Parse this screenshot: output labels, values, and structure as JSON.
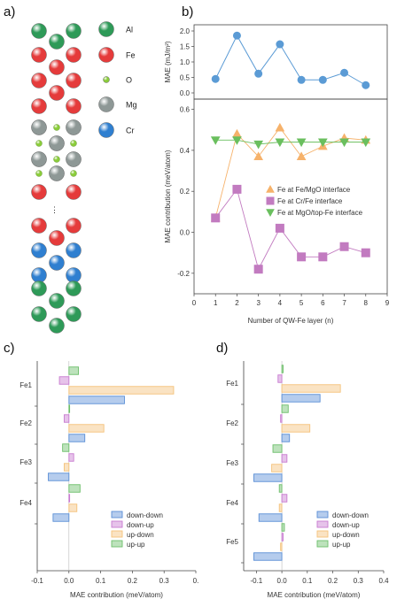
{
  "panels": {
    "a": "a)",
    "b": "b)",
    "c": "c)",
    "d": "d)"
  },
  "structure_a": {
    "legend": [
      {
        "label": "Al",
        "color": "#2e9a58"
      },
      {
        "label": "Fe",
        "color": "#e53b3b"
      },
      {
        "label": "O",
        "color": "#8acc3a"
      },
      {
        "label": "Mg",
        "color": "#8e9896"
      },
      {
        "label": "Cr",
        "color": "#2f7fd0"
      }
    ],
    "ellipsis": "⋮"
  },
  "chart_data": [
    {
      "id": "b_top",
      "type": "scatter",
      "ylabel": "MAE (mJ/m²)",
      "x": [
        1,
        2,
        3,
        4,
        5,
        6,
        7,
        8
      ],
      "y": [
        0.45,
        1.85,
        0.62,
        1.57,
        0.42,
        0.42,
        0.65,
        0.25
      ],
      "xlim": [
        0,
        9
      ],
      "ylim": [
        -0.2,
        2.2
      ],
      "yticks": [
        "0.0",
        "0.5",
        "1.0",
        "1.5",
        "2.0"
      ],
      "color": "#5b9bd5"
    },
    {
      "id": "b_bottom",
      "type": "scatter",
      "xlabel": "Number of QW-Fe layer (n)",
      "ylabel": "MAE contribution (meV/atom)",
      "xlim": [
        0,
        9
      ],
      "ylim": [
        -0.3,
        0.65
      ],
      "xticks": [
        "0",
        "1",
        "2",
        "3",
        "4",
        "5",
        "6",
        "7",
        "8",
        "9"
      ],
      "yticks": [
        "-0.2",
        "0.0",
        "0.2",
        "0.4",
        "0.6"
      ],
      "legend_position": "center-right",
      "series": [
        {
          "name": "Fe at Fe/MgO interface",
          "marker": "triangle-up",
          "color": "#f6b26b",
          "x": [
            1,
            2,
            3,
            4,
            5,
            6,
            7,
            8
          ],
          "y": [
            0.07,
            0.48,
            0.37,
            0.51,
            0.37,
            0.42,
            0.46,
            0.45
          ]
        },
        {
          "name": "Fe at Cr/Fe interface",
          "marker": "square",
          "color": "#c27bc0",
          "x": [
            1,
            2,
            3,
            4,
            5,
            6,
            7,
            8
          ],
          "y": [
            0.07,
            0.21,
            -0.18,
            0.02,
            -0.12,
            -0.12,
            -0.07,
            -0.1
          ]
        },
        {
          "name": "Fe at MgO/top-Fe interface",
          "marker": "triangle-down",
          "color": "#6abf5e",
          "x": [
            1,
            2,
            3,
            4,
            5,
            6,
            7,
            8
          ],
          "y": [
            0.45,
            0.45,
            0.43,
            0.44,
            0.44,
            0.44,
            0.44,
            0.44
          ]
        }
      ]
    },
    {
      "id": "c",
      "type": "bar",
      "orientation": "horizontal",
      "xlabel": "MAE contribution (meV/atom)",
      "xlim": [
        -0.1,
        0.4
      ],
      "xticks": [
        "-0.1",
        "0.0",
        "0.1",
        "0.2",
        "0.3",
        "0."
      ],
      "categories": [
        "Fe1",
        "Fe2",
        "Fe3",
        "Fe4"
      ],
      "legend_position": "bottom-right",
      "series": [
        {
          "name": "down-down",
          "color": "#5b8fd6",
          "values": [
            0.175,
            0.05,
            -0.065,
            -0.05
          ]
        },
        {
          "name": "down-up",
          "color": "#c87bd0",
          "values": [
            -0.03,
            -0.015,
            0.015,
            0.0
          ]
        },
        {
          "name": "up-down",
          "color": "#f4c27a",
          "values": [
            0.33,
            0.11,
            -0.015,
            0.025
          ]
        },
        {
          "name": "up-up",
          "color": "#6dbf6a",
          "values": [
            0.03,
            0.0,
            -0.02,
            0.035
          ]
        }
      ]
    },
    {
      "id": "d",
      "type": "bar",
      "orientation": "horizontal",
      "xlabel": "MAE contribution (meV/atom)",
      "xlim": [
        -0.15,
        0.4
      ],
      "xticks": [
        "-0.1",
        "0.0",
        "0.1",
        "0.2",
        "0.3",
        "0.4"
      ],
      "categories": [
        "Fe1",
        "Fe2",
        "Fe3",
        "Fe4",
        "Fe5"
      ],
      "legend_position": "bottom-right",
      "series": [
        {
          "name": "down-down",
          "color": "#5b8fd6",
          "values": [
            0.15,
            0.03,
            -0.11,
            -0.09,
            -0.11
          ]
        },
        {
          "name": "down-up",
          "color": "#c87bd0",
          "values": [
            -0.015,
            -0.005,
            0.02,
            0.02,
            0.005
          ]
        },
        {
          "name": "up-down",
          "color": "#f4c27a",
          "values": [
            0.23,
            0.11,
            -0.04,
            -0.01,
            -0.005
          ]
        },
        {
          "name": "up-up",
          "color": "#6dbf6a",
          "values": [
            0.005,
            0.025,
            -0.035,
            -0.01,
            0.01
          ]
        }
      ]
    }
  ]
}
